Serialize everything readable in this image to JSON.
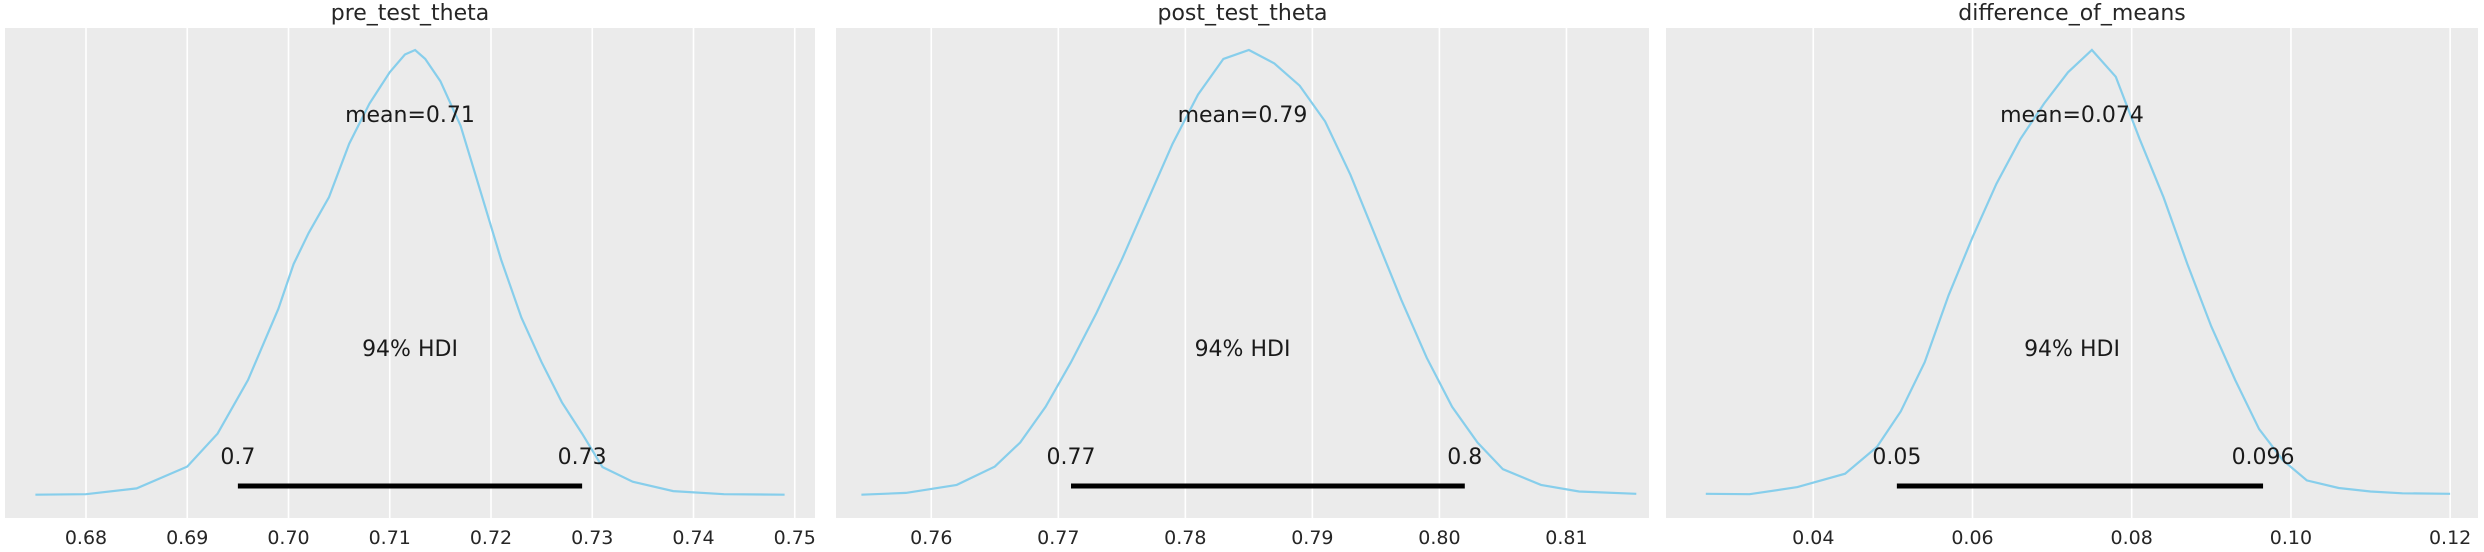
{
  "chart_data": [
    {
      "type": "area",
      "title": "pre_test_theta",
      "xlim": [
        0.672,
        0.752
      ],
      "xticks": [
        0.68,
        0.69,
        0.7,
        0.71,
        0.72,
        0.73,
        0.74,
        0.75
      ],
      "tick_labels": [
        "0.68",
        "0.69",
        "0.70",
        "0.71",
        "0.72",
        "0.73",
        "0.74",
        "0.75"
      ],
      "mean_label": "mean=0.71",
      "hdi_label": "94% HDI",
      "hdi": [
        0.695,
        0.729
      ],
      "hdi_low_label": "0.7",
      "hdi_high_label": "0.73",
      "density": {
        "x": [
          0.675,
          0.68,
          0.685,
          0.69,
          0.693,
          0.696,
          0.699,
          0.7005,
          0.702,
          0.704,
          0.706,
          0.708,
          0.71,
          0.7115,
          0.7125,
          0.7135,
          0.715,
          0.717,
          0.719,
          0.721,
          0.723,
          0.725,
          0.727,
          0.729,
          0.731,
          0.734,
          0.738,
          0.743,
          0.749
        ],
        "y": [
          0.003,
          0.004,
          0.017,
          0.066,
          0.14,
          0.26,
          0.42,
          0.52,
          0.59,
          0.67,
          0.79,
          0.88,
          0.95,
          0.99,
          1.0,
          0.98,
          0.93,
          0.83,
          0.68,
          0.53,
          0.4,
          0.3,
          0.21,
          0.14,
          0.065,
          0.032,
          0.011,
          0.004,
          0.003
        ]
      }
    },
    {
      "type": "area",
      "title": "post_test_theta",
      "xlim": [
        0.7525,
        0.8165
      ],
      "xticks": [
        0.76,
        0.77,
        0.78,
        0.79,
        0.8,
        0.81
      ],
      "tick_labels": [
        "0.76",
        "0.77",
        "0.78",
        "0.79",
        "0.80",
        "0.81"
      ],
      "mean_label": "mean=0.79",
      "hdi_label": "94% HDI",
      "hdi": [
        0.771,
        0.802
      ],
      "hdi_low_label": "0.77",
      "hdi_high_label": "0.8",
      "density": {
        "x": [
          0.7545,
          0.758,
          0.762,
          0.765,
          0.767,
          0.769,
          0.771,
          0.773,
          0.775,
          0.777,
          0.779,
          0.781,
          0.783,
          0.785,
          0.787,
          0.789,
          0.791,
          0.793,
          0.795,
          0.797,
          0.799,
          0.801,
          0.803,
          0.805,
          0.808,
          0.811,
          0.8155
        ],
        "y": [
          0.003,
          0.007,
          0.025,
          0.066,
          0.12,
          0.2,
          0.3,
          0.41,
          0.53,
          0.66,
          0.79,
          0.9,
          0.98,
          1.0,
          0.97,
          0.92,
          0.84,
          0.72,
          0.58,
          0.44,
          0.31,
          0.2,
          0.12,
          0.06,
          0.025,
          0.01,
          0.005
        ]
      }
    },
    {
      "type": "area",
      "title": "difference_of_means",
      "xlim": [
        0.0215,
        0.1235
      ],
      "xticks": [
        0.04,
        0.06,
        0.08,
        0.1,
        0.12
      ],
      "tick_labels": [
        "0.04",
        "0.06",
        "0.08",
        "0.10",
        "0.12"
      ],
      "mean_label": "mean=0.074",
      "hdi_label": "94% HDI",
      "hdi": [
        0.0505,
        0.0965
      ],
      "hdi_low_label": "0.05",
      "hdi_high_label": "0.096",
      "density": {
        "x": [
          0.0265,
          0.032,
          0.038,
          0.044,
          0.048,
          0.051,
          0.054,
          0.057,
          0.06,
          0.063,
          0.066,
          0.069,
          0.072,
          0.075,
          0.078,
          0.081,
          0.084,
          0.087,
          0.09,
          0.093,
          0.096,
          0.099,
          0.102,
          0.106,
          0.11,
          0.114,
          0.12
        ],
        "y": [
          0.005,
          0.004,
          0.02,
          0.05,
          0.11,
          0.19,
          0.3,
          0.45,
          0.58,
          0.7,
          0.8,
          0.88,
          0.95,
          1.0,
          0.94,
          0.8,
          0.67,
          0.52,
          0.38,
          0.26,
          0.15,
          0.08,
          0.035,
          0.018,
          0.01,
          0.006,
          0.005
        ]
      }
    }
  ]
}
